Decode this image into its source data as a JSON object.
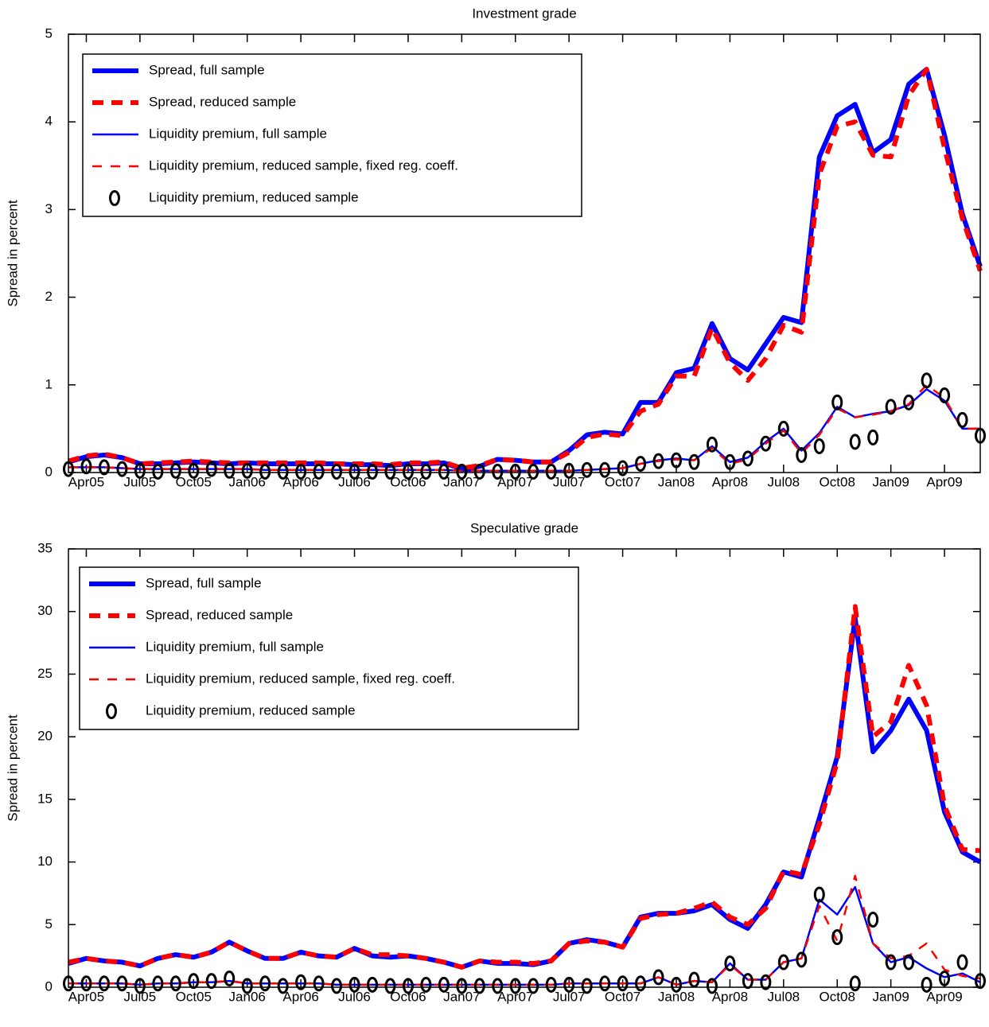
{
  "chart_data": [
    {
      "type": "line",
      "title": "Investment grade",
      "ylabel": "Spread in percent",
      "legend": "upper left",
      "categories": [
        null,
        "Apr05",
        null,
        null,
        "Jul05",
        null,
        null,
        "Oct05",
        null,
        null,
        "Jan06",
        null,
        null,
        "Apr06",
        null,
        null,
        "Jul06",
        null,
        null,
        "Oct06",
        null,
        null,
        "Jan07",
        null,
        null,
        "Apr07",
        null,
        null,
        "Jul07",
        null,
        null,
        "Oct07",
        null,
        null,
        "Jan08",
        null,
        null,
        "Apr08",
        null,
        null,
        "Jul08",
        null,
        null,
        "Oct08",
        null,
        null,
        "Jan09",
        null,
        null,
        "Apr09",
        null,
        null
      ],
      "ylim": [
        0,
        5
      ],
      "yticks": [
        0,
        1,
        2,
        3,
        4,
        5
      ],
      "series": [
        {
          "name": "Spread, full sample",
          "color": "#0000ff",
          "linestyle": "solid",
          "values": [
            0.12,
            0.18,
            0.2,
            0.17,
            0.1,
            0.1,
            0.11,
            0.12,
            0.11,
            0.1,
            0.11,
            0.1,
            0.1,
            0.1,
            0.1,
            0.1,
            0.09,
            0.09,
            0.08,
            0.1,
            0.1,
            0.11,
            0.04,
            0.07,
            0.15,
            0.14,
            0.12,
            0.12,
            0.25,
            0.43,
            0.46,
            0.44,
            0.8,
            0.8,
            1.14,
            1.19,
            1.7,
            1.3,
            1.17,
            1.47,
            1.77,
            1.71,
            3.6,
            4.07,
            4.2,
            3.65,
            3.8,
            4.43,
            4.6,
            3.85,
            2.95,
            2.35
          ]
        },
        {
          "name": "Spread, reduced sample",
          "color": "#ff0000",
          "linestyle": "dashed",
          "values": [
            0.13,
            0.19,
            0.21,
            0.17,
            0.1,
            0.11,
            0.12,
            0.13,
            0.12,
            0.11,
            0.11,
            0.11,
            0.11,
            0.11,
            0.11,
            0.1,
            0.1,
            0.1,
            0.09,
            0.11,
            0.11,
            0.12,
            0.05,
            0.08,
            0.15,
            0.14,
            0.12,
            0.12,
            0.23,
            0.4,
            0.44,
            0.42,
            0.7,
            0.78,
            1.1,
            1.1,
            1.65,
            1.25,
            1.05,
            1.3,
            1.68,
            1.6,
            3.4,
            3.95,
            4.0,
            3.62,
            3.6,
            4.3,
            4.6,
            3.7,
            2.9,
            2.3
          ]
        },
        {
          "name": "Liquidity premium, full sample",
          "color": "#0000ff",
          "linestyle": "solid",
          "values": [
            0.06,
            0.06,
            0.06,
            0.05,
            0.04,
            0.04,
            0.04,
            0.04,
            0.04,
            0.04,
            0.04,
            0.03,
            0.03,
            0.03,
            0.03,
            0.03,
            0.03,
            0.03,
            0.03,
            0.03,
            0.03,
            0.03,
            0.02,
            0.02,
            0.02,
            0.02,
            0.02,
            0.02,
            0.02,
            0.03,
            0.04,
            0.05,
            0.1,
            0.14,
            0.16,
            0.14,
            0.3,
            0.12,
            0.17,
            0.35,
            0.5,
            0.25,
            0.45,
            0.75,
            0.63,
            0.67,
            0.7,
            0.77,
            0.95,
            0.82,
            0.5,
            0.5
          ]
        },
        {
          "name": "Liquidity premium, reduced sample, fixed reg. coeff.",
          "color": "#ff0000",
          "linestyle": "dashed",
          "values": [
            0.06,
            0.06,
            0.06,
            0.05,
            0.04,
            0.04,
            0.04,
            0.04,
            0.04,
            0.04,
            0.04,
            0.03,
            0.03,
            0.03,
            0.03,
            0.03,
            0.03,
            0.03,
            0.03,
            0.03,
            0.03,
            0.03,
            0.02,
            0.02,
            0.02,
            0.02,
            0.02,
            0.02,
            0.02,
            0.03,
            0.04,
            0.05,
            0.1,
            0.13,
            0.15,
            0.14,
            0.28,
            0.1,
            0.15,
            0.33,
            0.48,
            0.22,
            0.43,
            0.73,
            0.63,
            0.66,
            0.7,
            0.78,
            1.0,
            0.85,
            0.5,
            0.5
          ]
        },
        {
          "name": "Liquidity premium, reduced sample",
          "color": "#000000",
          "linestyle": "none",
          "marker": "o",
          "values": [
            0.04,
            0.07,
            0.06,
            0.04,
            0.02,
            0.01,
            0.02,
            0.02,
            0.04,
            0.02,
            0.02,
            0.01,
            0.01,
            0.01,
            0.01,
            0.01,
            0.01,
            0.01,
            0.01,
            0.01,
            0.01,
            0.01,
            0.01,
            0.01,
            0.01,
            0.01,
            0.01,
            0.01,
            0.02,
            0.03,
            0.03,
            0.05,
            0.1,
            0.13,
            0.14,
            0.12,
            0.32,
            0.12,
            0.16,
            0.33,
            0.5,
            0.2,
            0.3,
            0.8,
            0.35,
            0.4,
            0.75,
            0.8,
            1.05,
            0.88,
            0.6,
            0.42
          ]
        }
      ]
    },
    {
      "type": "line",
      "title": "Speculative grade",
      "ylabel": "Spread in percent",
      "legend": "upper left",
      "categories": [
        null,
        "Apr05",
        null,
        null,
        "Jul05",
        null,
        null,
        "Oct05",
        null,
        null,
        "Jan06",
        null,
        null,
        "Apr06",
        null,
        null,
        "Jul06",
        null,
        null,
        "Oct06",
        null,
        null,
        "Jan07",
        null,
        null,
        "Apr07",
        null,
        null,
        "Jul07",
        null,
        null,
        "Oct07",
        null,
        null,
        "Jan08",
        null,
        null,
        "Apr08",
        null,
        null,
        "Jul08",
        null,
        null,
        "Oct08",
        null,
        null,
        "Jan09",
        null,
        null,
        "Apr09",
        null,
        null
      ],
      "ylim": [
        0,
        35
      ],
      "yticks": [
        0,
        5,
        10,
        15,
        20,
        25,
        30,
        35
      ],
      "series": [
        {
          "name": "Spread, full sample",
          "color": "#0000ff",
          "linestyle": "solid",
          "values": [
            1.9,
            2.3,
            2.1,
            2.0,
            1.7,
            2.3,
            2.6,
            2.4,
            2.8,
            3.6,
            2.9,
            2.3,
            2.3,
            2.8,
            2.5,
            2.4,
            3.1,
            2.5,
            2.4,
            2.5,
            2.3,
            2.0,
            1.6,
            2.1,
            1.9,
            1.9,
            1.8,
            2.1,
            3.5,
            3.8,
            3.6,
            3.2,
            5.6,
            5.9,
            5.9,
            6.1,
            6.6,
            5.4,
            4.7,
            6.6,
            9.2,
            8.8,
            13.5,
            18.4,
            29.5,
            18.8,
            20.5,
            23.0,
            20.5,
            14.0,
            10.8,
            10.0
          ]
        },
        {
          "name": "Spread, reduced sample",
          "color": "#ff0000",
          "linestyle": "dashed",
          "values": [
            2.0,
            2.3,
            2.1,
            2.0,
            1.7,
            2.3,
            2.6,
            2.4,
            2.8,
            3.6,
            2.9,
            2.3,
            2.3,
            2.8,
            2.5,
            2.4,
            3.1,
            2.6,
            2.6,
            2.5,
            2.3,
            2.0,
            1.6,
            2.1,
            2.0,
            2.0,
            1.9,
            2.1,
            3.5,
            3.7,
            3.6,
            3.2,
            5.5,
            5.8,
            5.9,
            6.3,
            6.8,
            5.6,
            5.0,
            6.3,
            9.3,
            9.0,
            13.0,
            18.0,
            30.4,
            20.0,
            21.2,
            25.7,
            22.5,
            14.5,
            11.0,
            10.9
          ]
        },
        {
          "name": "Liquidity premium, full sample",
          "color": "#0000ff",
          "linestyle": "solid",
          "values": [
            0.3,
            0.3,
            0.3,
            0.3,
            0.2,
            0.3,
            0.3,
            0.4,
            0.4,
            0.5,
            0.3,
            0.3,
            0.3,
            0.3,
            0.3,
            0.2,
            0.2,
            0.2,
            0.2,
            0.2,
            0.2,
            0.2,
            0.2,
            0.2,
            0.2,
            0.2,
            0.2,
            0.2,
            0.3,
            0.3,
            0.3,
            0.3,
            0.3,
            0.8,
            0.2,
            0.5,
            0.4,
            1.9,
            0.6,
            0.6,
            2.0,
            2.3,
            7.0,
            5.8,
            8.0,
            3.5,
            2.0,
            2.4,
            1.5,
            0.8,
            1.1,
            0.4
          ]
        },
        {
          "name": "Liquidity premium, reduced sample, fixed reg. coeff.",
          "color": "#ff0000",
          "linestyle": "dashed",
          "values": [
            0.3,
            0.3,
            0.3,
            0.3,
            0.2,
            0.3,
            0.3,
            0.4,
            0.4,
            0.5,
            0.3,
            0.3,
            0.3,
            0.3,
            0.3,
            0.2,
            0.2,
            0.2,
            0.2,
            0.2,
            0.2,
            0.2,
            0.2,
            0.2,
            0.2,
            0.2,
            0.2,
            0.2,
            0.3,
            0.3,
            0.3,
            0.3,
            0.3,
            0.8,
            0.2,
            0.5,
            0.4,
            1.8,
            0.6,
            0.6,
            2.0,
            2.3,
            6.5,
            3.7,
            8.9,
            3.5,
            2.3,
            2.5,
            3.5,
            1.4,
            0.9,
            0.7
          ]
        },
        {
          "name": "Liquidity premium, reduced sample",
          "color": "#000000",
          "linestyle": "none",
          "marker": "o",
          "values": [
            0.3,
            0.3,
            0.3,
            0.3,
            0.1,
            0.3,
            0.3,
            0.5,
            0.5,
            0.7,
            0.1,
            0.3,
            0.1,
            0.4,
            0.3,
            0.1,
            0.2,
            0.2,
            0.1,
            0.1,
            0.2,
            0.2,
            0.1,
            0.1,
            0.1,
            0.1,
            0.1,
            0.2,
            0.2,
            0.1,
            0.3,
            0.3,
            0.3,
            0.8,
            0.2,
            0.6,
            0.1,
            1.9,
            0.5,
            0.4,
            2.0,
            2.2,
            7.4,
            4.0,
            0.3,
            5.4,
            2.0,
            2.0,
            0.2,
            0.7,
            2.0,
            0.5
          ]
        }
      ]
    }
  ]
}
